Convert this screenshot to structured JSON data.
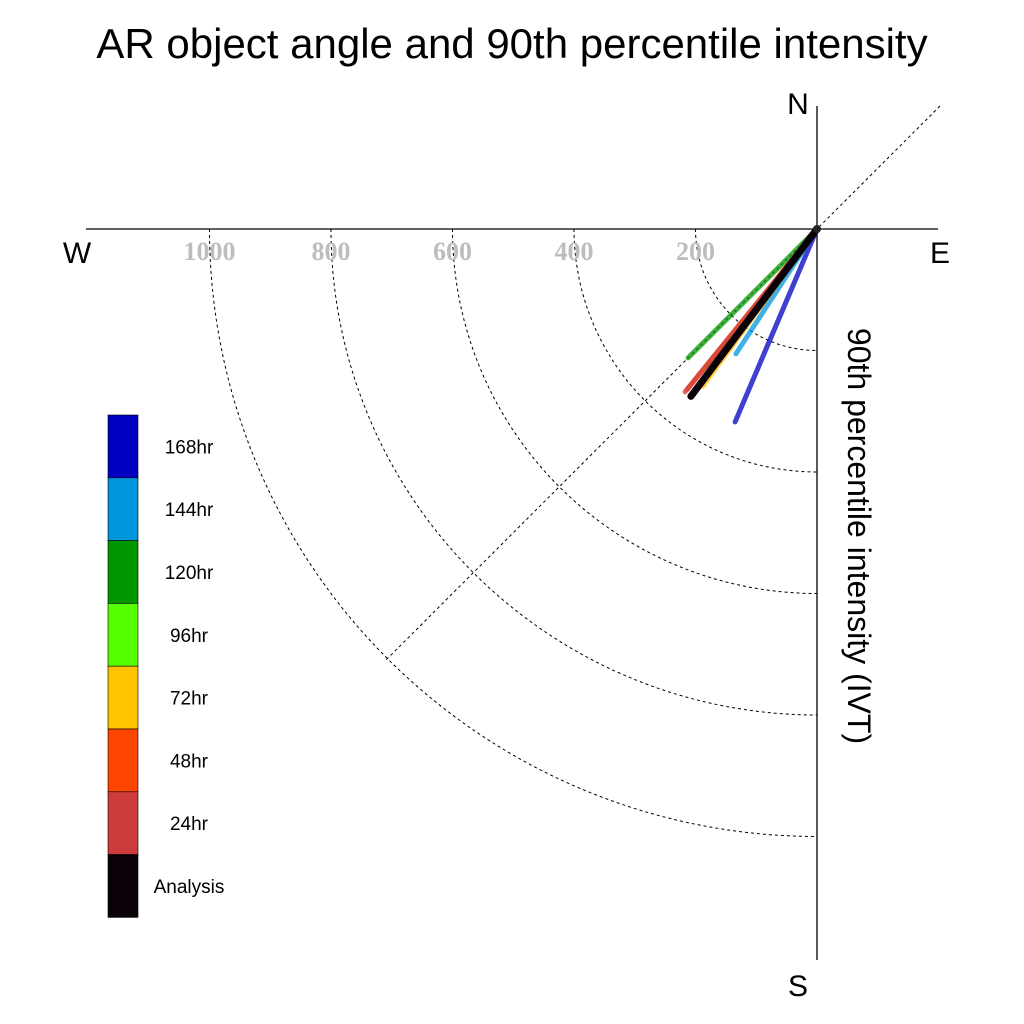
{
  "chart_data": {
    "type": "scatter",
    "title": "AR object angle and 90th percentile intensity",
    "ylabel": "90th percentile intensity (IVT)",
    "compass": {
      "north": "N",
      "south": "S",
      "east": "E",
      "west": "W"
    },
    "radial_ticks": [
      200,
      400,
      600,
      800,
      1000
    ],
    "radial_tick_labels": [
      "200",
      "400",
      "600",
      "800",
      "1000"
    ],
    "radial_range": [
      0,
      1200
    ],
    "grid": true,
    "legend_position": "left",
    "series": [
      {
        "name": "168hr",
        "color": "#0000c0",
        "angle_deg": 203,
        "intensity": 345
      },
      {
        "name": "144hr",
        "color": "#0096dc",
        "angle_deg": 213,
        "intensity": 245
      },
      {
        "name": "120hr",
        "color": "#009600",
        "angle_deg": 225,
        "intensity": 300
      },
      {
        "name": "96hr",
        "color": "#55ff00",
        "angle_deg": 218,
        "intensity": 290
      },
      {
        "name": "72hr",
        "color": "#ffc300",
        "angle_deg": 216,
        "intensity": 320
      },
      {
        "name": "48hr",
        "color": "#ff4600",
        "angle_deg": 219,
        "intensity": 340
      },
      {
        "name": "24hr",
        "color": "#cd3c3c",
        "angle_deg": 219,
        "intensity": 345
      },
      {
        "name": "Analysis",
        "color": "#0a0008",
        "angle_deg": 217,
        "intensity": 345
      }
    ]
  }
}
